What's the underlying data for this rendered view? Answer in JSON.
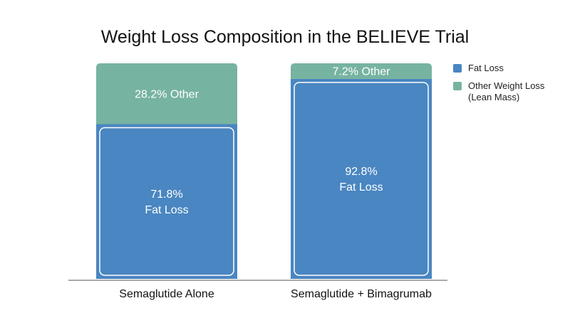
{
  "colors": {
    "fat": "#4a86c1",
    "other": "#76b3a0",
    "inner_border": "#ffffff",
    "axis": "#555555",
    "text_dark": "#111111",
    "text_light": "#ffffff"
  },
  "chart_data": {
    "type": "bar",
    "stacked": true,
    "title": "Weight Loss Composition in the BELIEVE Trial",
    "categories": [
      "Semaglutide Alone",
      "Semaglutide + Bimagrumab"
    ],
    "ylim": [
      0,
      100
    ],
    "grid": false,
    "legend_position": "right",
    "series": [
      {
        "name": "Fat Loss",
        "color": "#4a86c1",
        "values": [
          71.8,
          92.8
        ],
        "labels": [
          "71.8%\nFat Loss",
          "92.8%\nFat Loss"
        ]
      },
      {
        "name": "Other Weight Loss\n(Lean Mass)",
        "color": "#76b3a0",
        "values": [
          28.2,
          7.2
        ],
        "labels": [
          "28.2% Other",
          "7.2% Other"
        ]
      }
    ]
  }
}
